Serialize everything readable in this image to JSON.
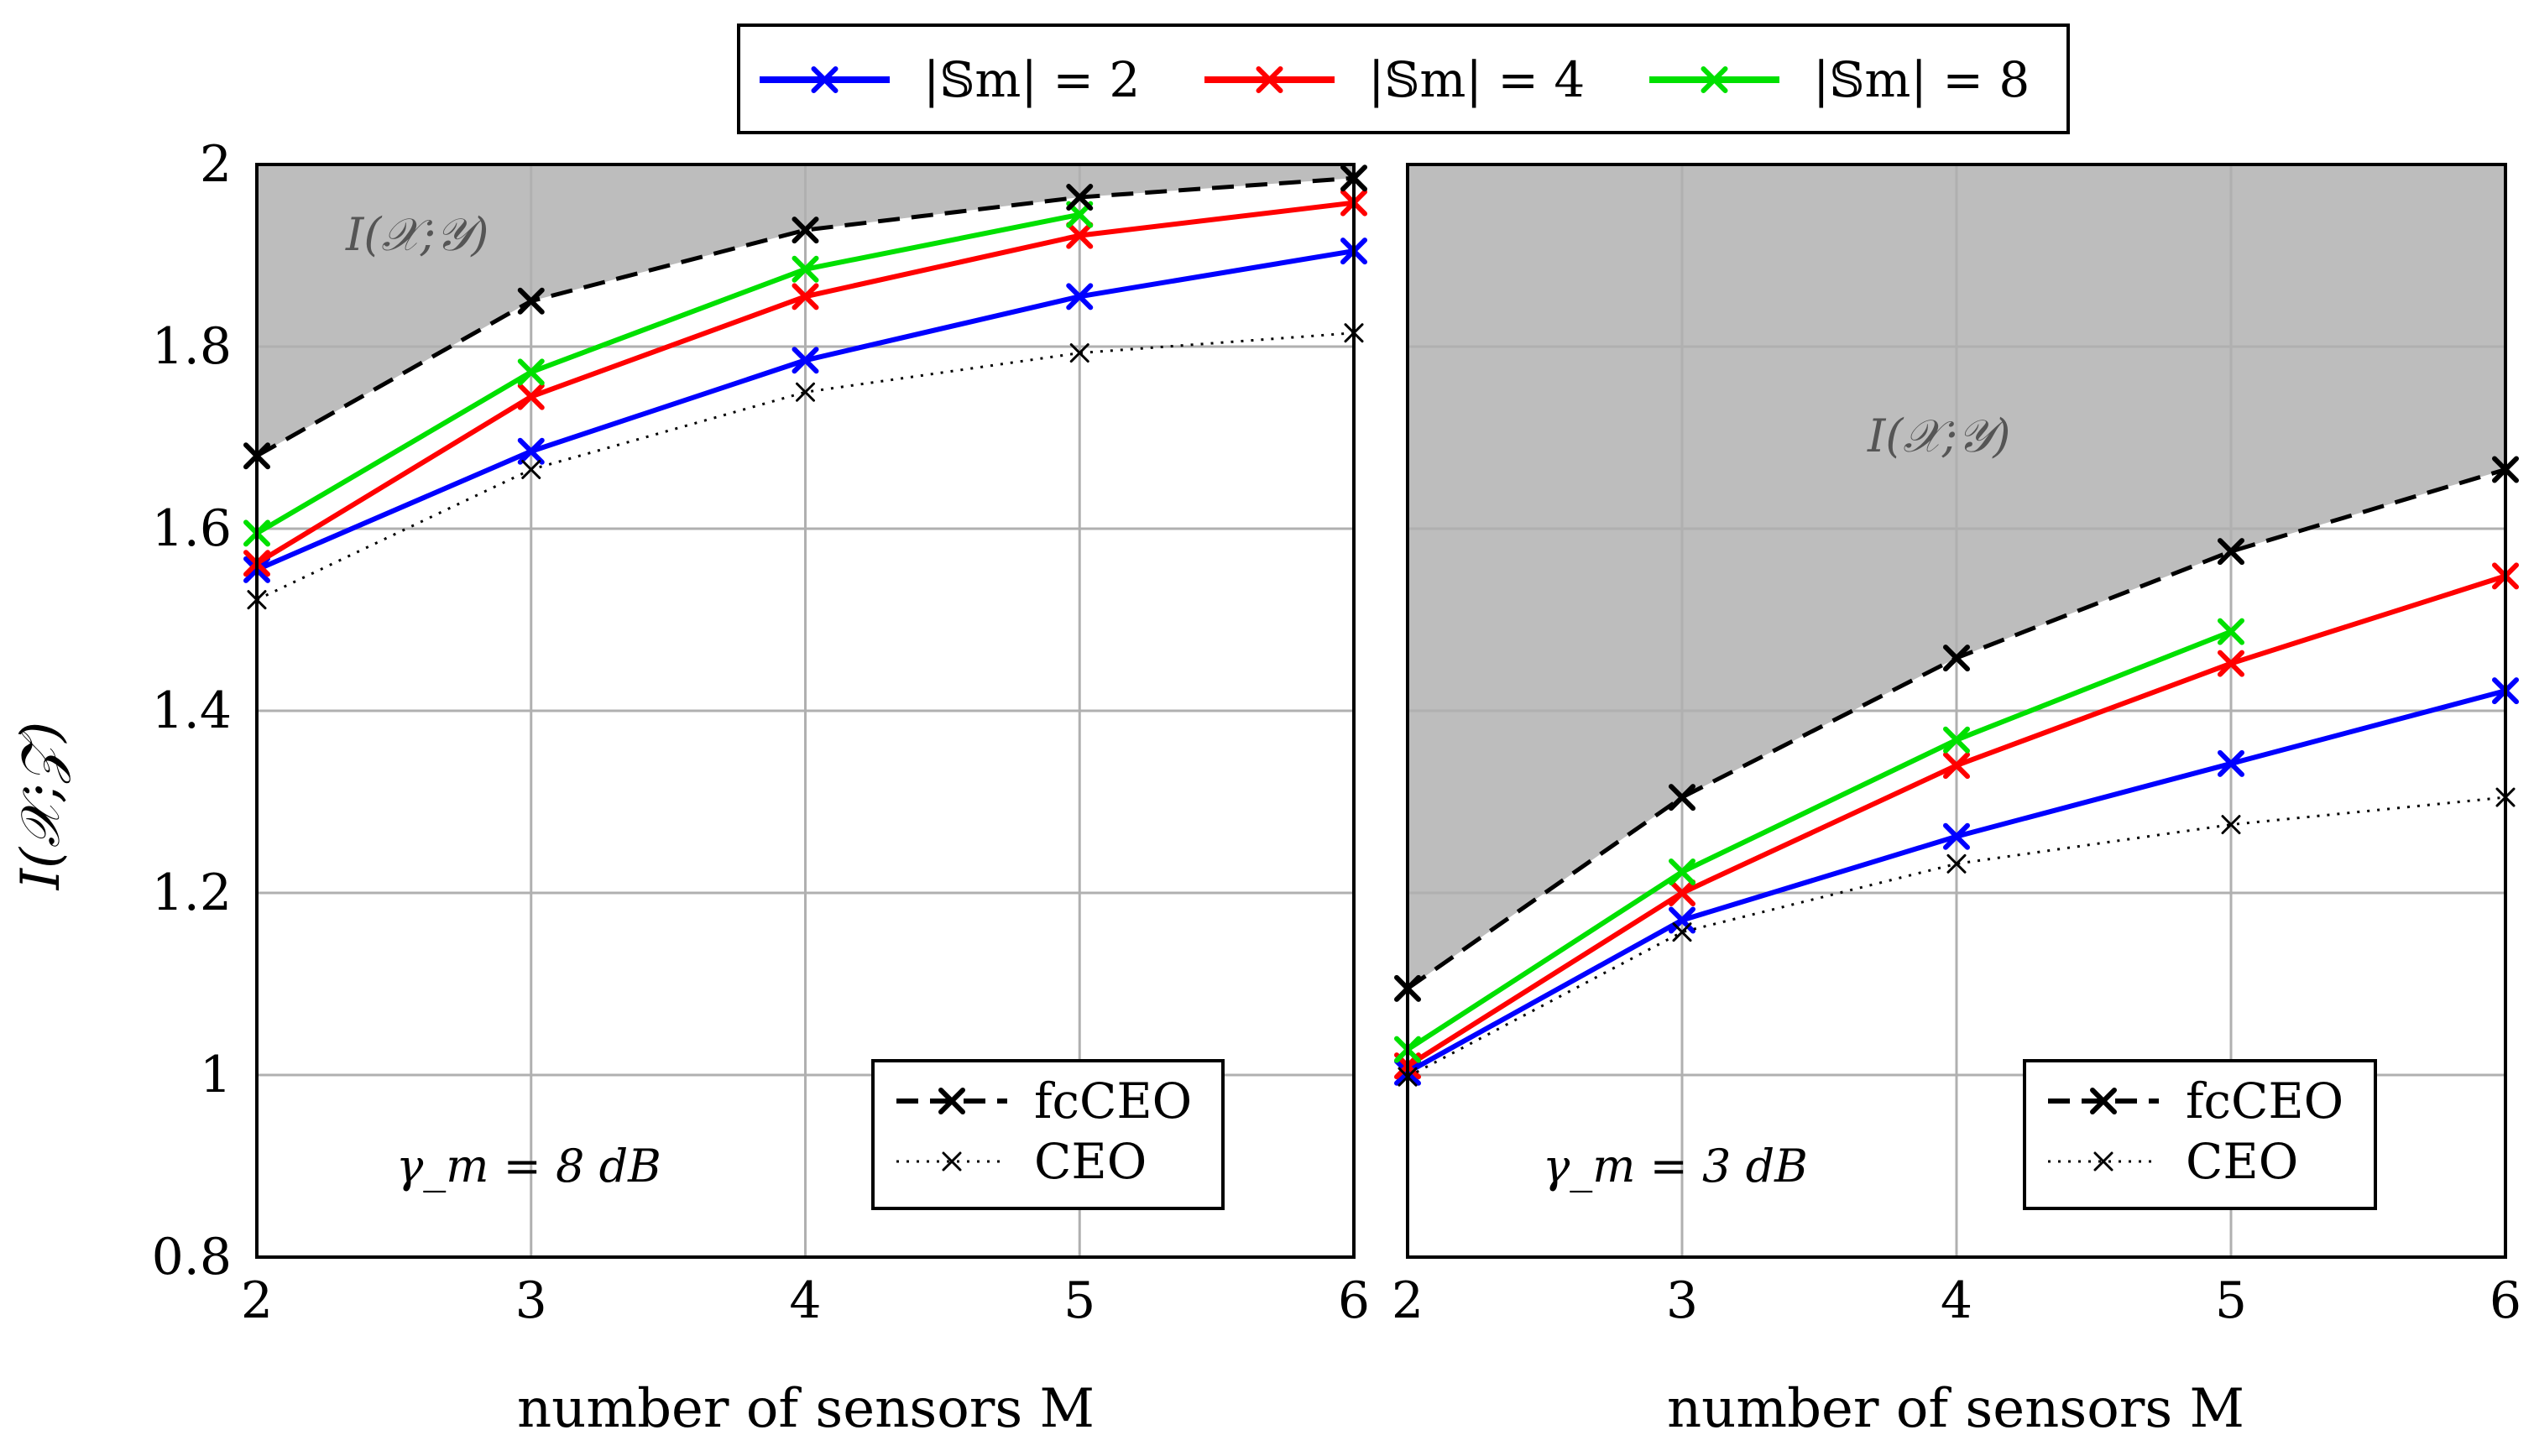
{
  "chart_data": [
    {
      "type": "line",
      "panel": "left",
      "annotation": "γ_m = 8 dB",
      "shaded_region_label": "I(𝒳;𝒴)",
      "xlabel": "number of sensors M",
      "ylabel": "I(𝒳;𝒵)",
      "x": [
        2,
        3,
        4,
        5,
        6
      ],
      "x_ticks": [
        "2",
        "3",
        "4",
        "5",
        "6"
      ],
      "y_ticks": [
        "0.8",
        "1",
        "1.2",
        "1.4",
        "1.6",
        "1.8",
        "2"
      ],
      "xlim": [
        2,
        6
      ],
      "ylim": [
        0.8,
        2.0
      ],
      "grid": true,
      "series": [
        {
          "name": "|𝕊m| = 2",
          "color": "#0000ff",
          "style": "solid",
          "x": [
            2,
            3,
            4,
            5,
            6
          ],
          "values": [
            1.555,
            1.685,
            1.785,
            1.855,
            1.905
          ]
        },
        {
          "name": "|𝕊m| = 4",
          "color": "#ff0000",
          "style": "solid",
          "x": [
            2,
            3,
            4,
            5,
            6
          ],
          "values": [
            1.562,
            1.745,
            1.855,
            1.922,
            1.958
          ]
        },
        {
          "name": "|𝕊m| = 8",
          "color": "#00e000",
          "style": "solid",
          "x": [
            2,
            3,
            4,
            5
          ],
          "values": [
            1.595,
            1.772,
            1.885,
            1.945
          ]
        },
        {
          "name": "fcCEO",
          "color": "#000000",
          "style": "dashed",
          "x": [
            2,
            3,
            4,
            5,
            6
          ],
          "values": [
            1.68,
            1.85,
            1.928,
            1.964,
            1.985
          ]
        },
        {
          "name": "CEO",
          "color": "#000000",
          "style": "dotted",
          "x": [
            2,
            3,
            4,
            5,
            6
          ],
          "values": [
            1.522,
            1.665,
            1.75,
            1.793,
            1.815
          ]
        }
      ],
      "legend": [
        "fcCEO",
        "CEO"
      ],
      "legend_position": "bottom-right"
    },
    {
      "type": "line",
      "panel": "right",
      "annotation": "γ_m = 3 dB",
      "shaded_region_label": "I(𝒳;𝒴)",
      "xlabel": "number of sensors M",
      "x": [
        2,
        3,
        4,
        5,
        6
      ],
      "x_ticks": [
        "2",
        "3",
        "4",
        "5",
        "6"
      ],
      "xlim": [
        2,
        6
      ],
      "ylim": [
        0.8,
        2.0
      ],
      "grid": true,
      "series": [
        {
          "name": "|𝕊m| = 2",
          "color": "#0000ff",
          "style": "solid",
          "x": [
            2,
            3,
            4,
            5,
            6
          ],
          "values": [
            1.003,
            1.17,
            1.262,
            1.342,
            1.422
          ]
        },
        {
          "name": "|𝕊m| = 4",
          "color": "#ff0000",
          "style": "solid",
          "x": [
            2,
            3,
            4,
            5,
            6
          ],
          "values": [
            1.01,
            1.2,
            1.34,
            1.452,
            1.548
          ]
        },
        {
          "name": "|𝕊m| = 8",
          "color": "#00e000",
          "style": "solid",
          "x": [
            2,
            3,
            4,
            5
          ],
          "values": [
            1.028,
            1.223,
            1.368,
            1.487
          ]
        },
        {
          "name": "fcCEO",
          "color": "#000000",
          "style": "dashed",
          "x": [
            2,
            3,
            4,
            5,
            6
          ],
          "values": [
            1.095,
            1.305,
            1.458,
            1.575,
            1.665
          ]
        },
        {
          "name": "CEO",
          "color": "#000000",
          "style": "dotted",
          "x": [
            2,
            3,
            4,
            5,
            6
          ],
          "values": [
            0.998,
            1.157,
            1.232,
            1.275,
            1.305
          ]
        }
      ],
      "legend": [
        "fcCEO",
        "CEO"
      ],
      "legend_position": "bottom-right"
    }
  ],
  "top_legend": [
    {
      "label": "|𝕊m| = 2",
      "color": "#0000ff"
    },
    {
      "label": "|𝕊m| = 4",
      "color": "#ff0000"
    },
    {
      "label": "|𝕊m| = 8",
      "color": "#00e000"
    }
  ]
}
